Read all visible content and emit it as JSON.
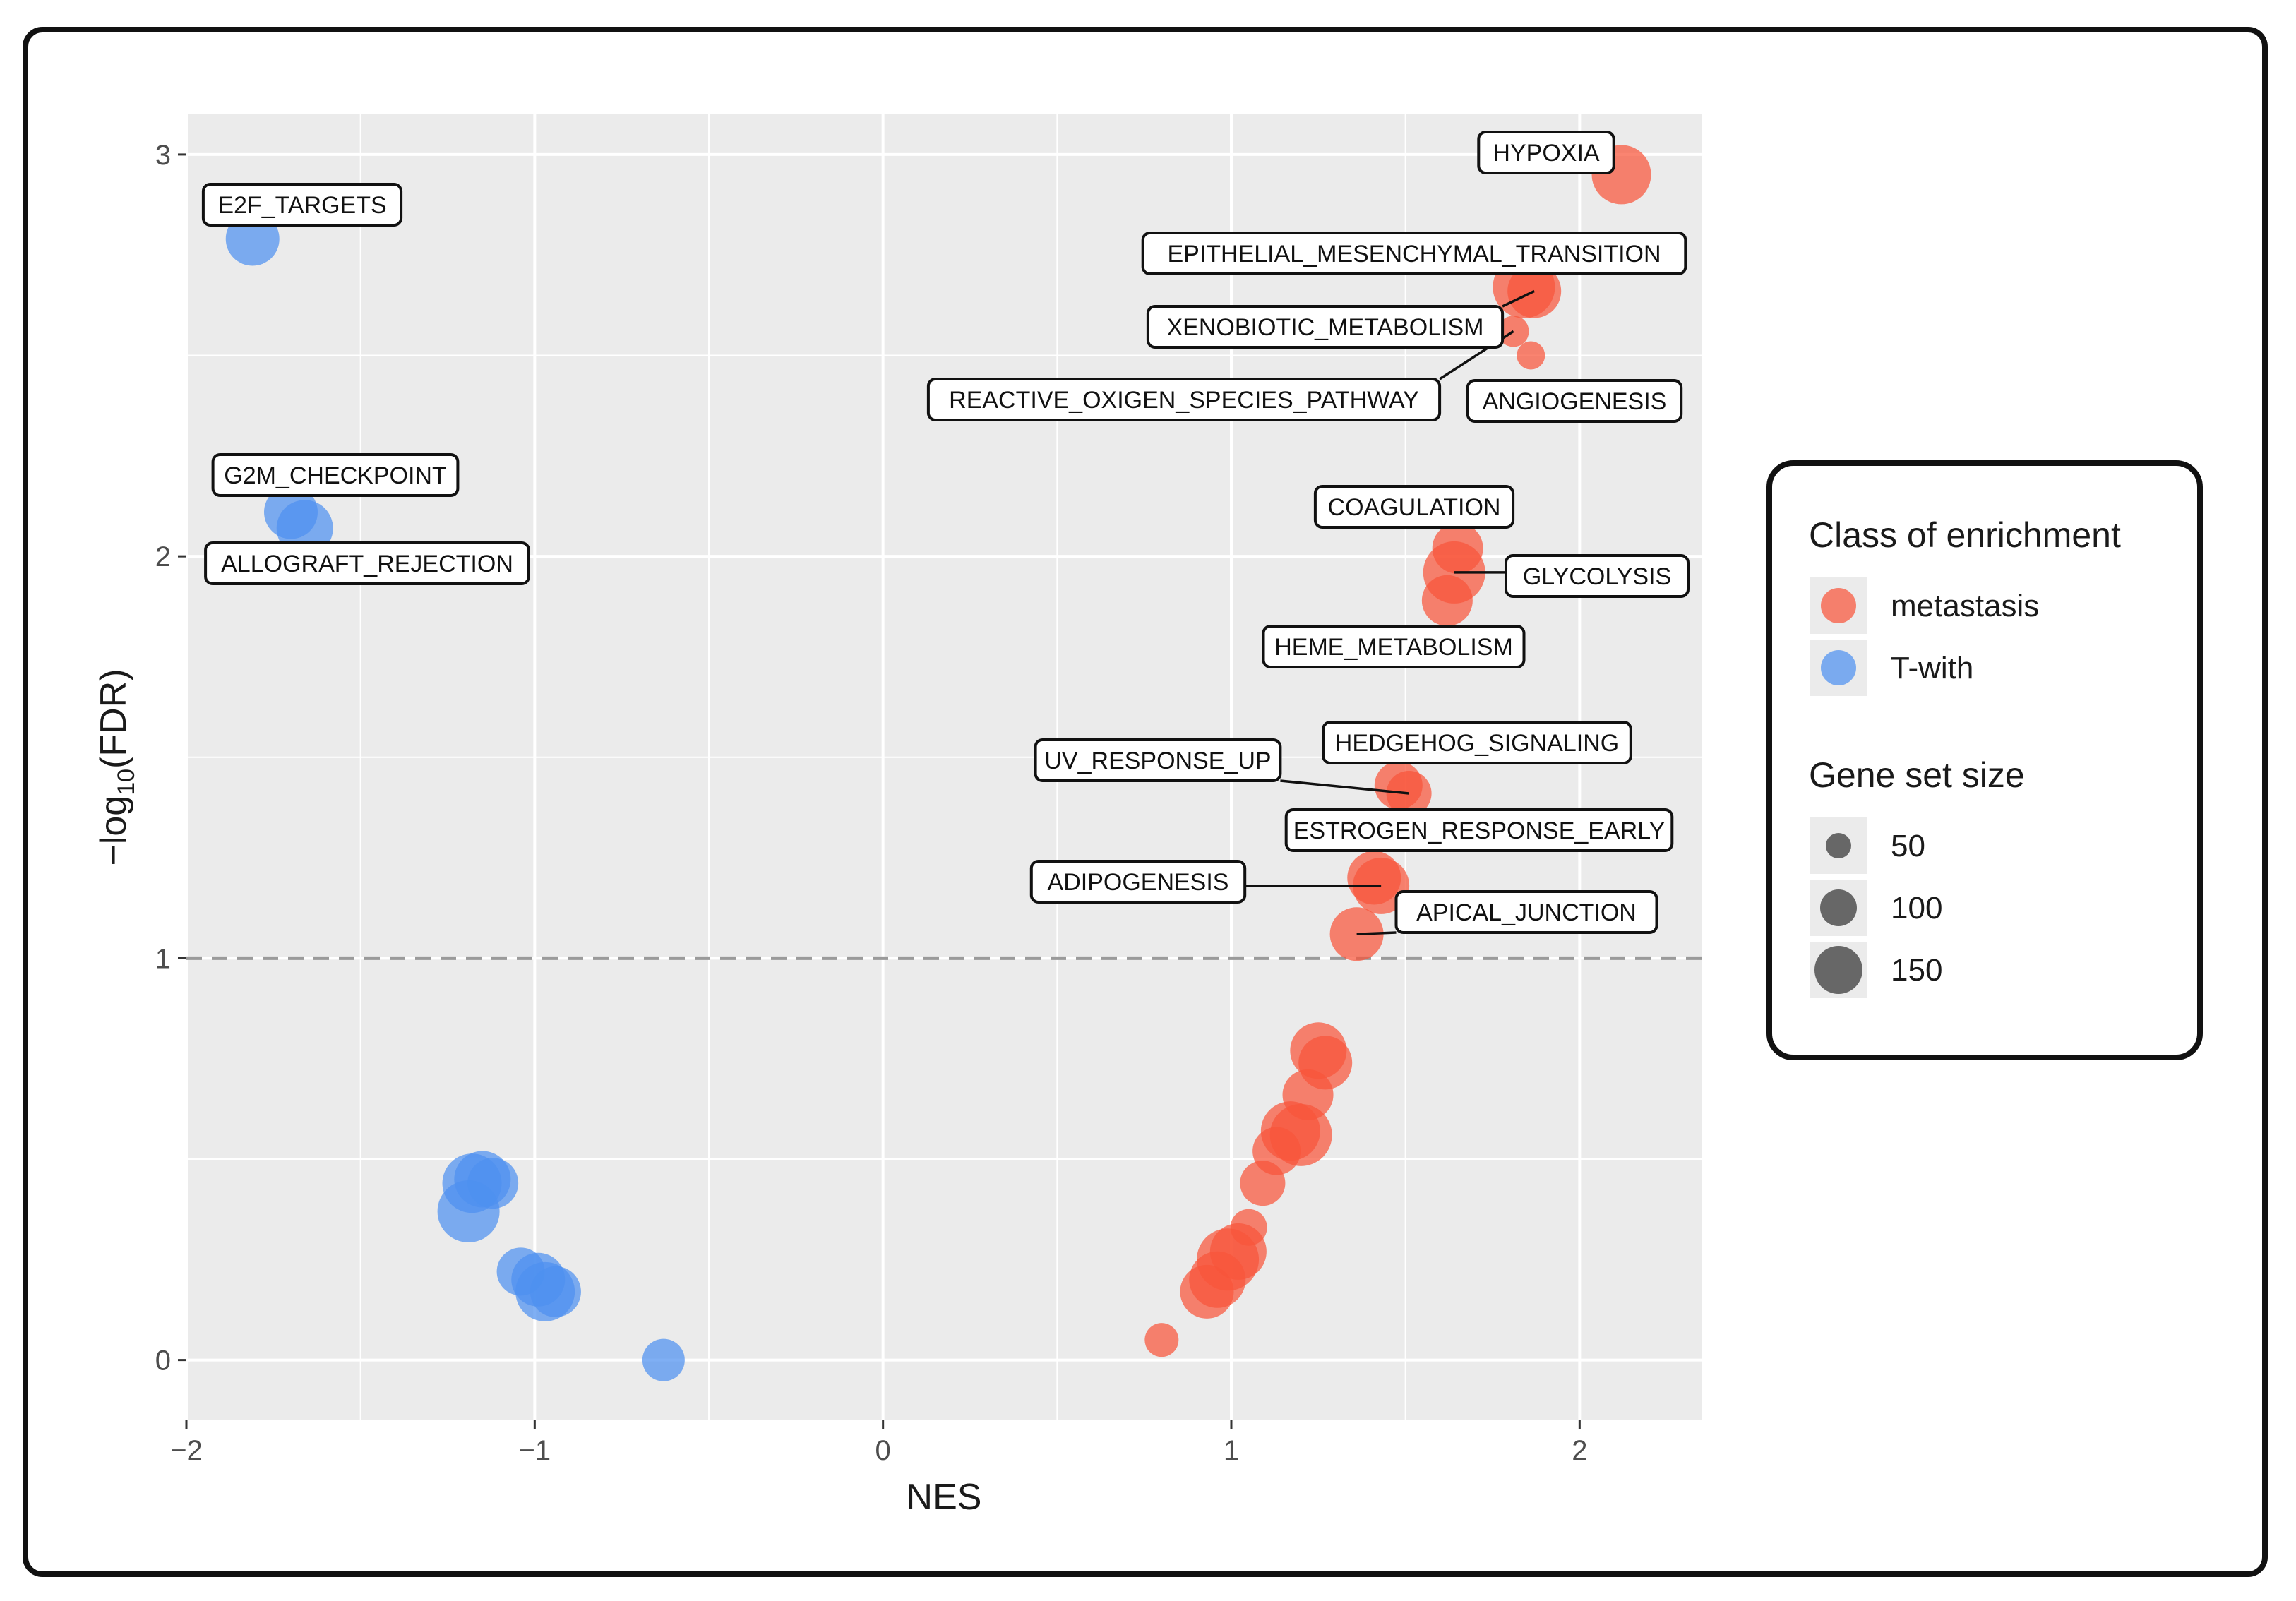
{
  "chart_data": {
    "type": "scatter",
    "xlabel": "NES",
    "ylabel_main": "−log",
    "ylabel_sub": "10",
    "ylabel_tail": "(FDR)",
    "xlim": [
      -2.0,
      2.35
    ],
    "ylim": [
      -0.15,
      3.1
    ],
    "x_ticks": [
      -2,
      -1,
      0,
      1,
      2
    ],
    "x_tick_labels": [
      "−2",
      "−1",
      "0",
      "1",
      "2"
    ],
    "y_ticks": [
      0,
      1,
      2,
      3
    ],
    "y_tick_labels": [
      "0",
      "1",
      "2",
      "3"
    ],
    "threshold_y": 1,
    "grid": true,
    "legend": {
      "color_title": "Class of enrichment",
      "color_items": [
        {
          "label": "metastasis",
          "color": "#F8543A"
        },
        {
          "label": "T-with",
          "color": "#4D90F0"
        }
      ],
      "size_title": "Gene set size",
      "size_items": [
        {
          "label": "50",
          "size": 50
        },
        {
          "label": "100",
          "size": 100
        },
        {
          "label": "150",
          "size": 150
        }
      ]
    },
    "series": [
      {
        "name": "T-with",
        "color": "#4D90F0",
        "points": [
          {
            "x": -1.81,
            "y": 2.79,
            "size": 120
          },
          {
            "x": -1.7,
            "y": 2.11,
            "size": 120
          },
          {
            "x": -1.66,
            "y": 2.07,
            "size": 130
          },
          {
            "x": -1.18,
            "y": 0.44,
            "size": 140
          },
          {
            "x": -1.15,
            "y": 0.45,
            "size": 130
          },
          {
            "x": -1.12,
            "y": 0.44,
            "size": 110
          },
          {
            "x": -1.19,
            "y": 0.37,
            "size": 150
          },
          {
            "x": -1.04,
            "y": 0.22,
            "size": 100
          },
          {
            "x": -0.99,
            "y": 0.2,
            "size": 120
          },
          {
            "x": -0.97,
            "y": 0.17,
            "size": 140
          },
          {
            "x": -0.94,
            "y": 0.17,
            "size": 110
          },
          {
            "x": -0.63,
            "y": 0.0,
            "size": 80
          }
        ]
      },
      {
        "name": "metastasis",
        "color": "#F8543A",
        "points": [
          {
            "x": 2.12,
            "y": 2.95,
            "size": 140
          },
          {
            "x": 1.84,
            "y": 2.67,
            "size": 150
          },
          {
            "x": 1.87,
            "y": 2.66,
            "size": 120
          },
          {
            "x": 1.81,
            "y": 2.56,
            "size": 40
          },
          {
            "x": 1.86,
            "y": 2.5,
            "size": 30
          },
          {
            "x": 1.65,
            "y": 2.02,
            "size": 110
          },
          {
            "x": 1.64,
            "y": 1.96,
            "size": 150
          },
          {
            "x": 1.62,
            "y": 1.89,
            "size": 110
          },
          {
            "x": 1.48,
            "y": 1.43,
            "size": 100
          },
          {
            "x": 1.51,
            "y": 1.41,
            "size": 90
          },
          {
            "x": 1.41,
            "y": 1.2,
            "size": 120
          },
          {
            "x": 1.43,
            "y": 1.18,
            "size": 130
          },
          {
            "x": 1.36,
            "y": 1.06,
            "size": 120
          },
          {
            "x": 1.25,
            "y": 0.77,
            "size": 130
          },
          {
            "x": 1.27,
            "y": 0.74,
            "size": 120
          },
          {
            "x": 1.22,
            "y": 0.66,
            "size": 110
          },
          {
            "x": 1.17,
            "y": 0.57,
            "size": 140
          },
          {
            "x": 1.2,
            "y": 0.56,
            "size": 150
          },
          {
            "x": 1.13,
            "y": 0.52,
            "size": 100
          },
          {
            "x": 1.09,
            "y": 0.44,
            "size": 90
          },
          {
            "x": 1.05,
            "y": 0.33,
            "size": 60
          },
          {
            "x": 1.02,
            "y": 0.27,
            "size": 130
          },
          {
            "x": 0.99,
            "y": 0.25,
            "size": 150
          },
          {
            "x": 0.96,
            "y": 0.2,
            "size": 130
          },
          {
            "x": 0.93,
            "y": 0.17,
            "size": 120
          },
          {
            "x": 0.8,
            "y": 0.05,
            "size": 50
          }
        ]
      }
    ],
    "labels": [
      {
        "text": "E2F_TARGETS",
        "x": -1.81,
        "y": 2.79
      },
      {
        "text": "G2M_CHECKPOINT",
        "x": -1.7,
        "y": 2.11
      },
      {
        "text": "ALLOGRAFT_REJECTION",
        "x": -1.66,
        "y": 2.07
      },
      {
        "text": "HYPOXIA",
        "x": 2.12,
        "y": 2.95
      },
      {
        "text": "EPITHELIAL_MESENCHYMAL_TRANSITION",
        "x": 1.84,
        "y": 2.67
      },
      {
        "text": "XENOBIOTIC_METABOLISM",
        "x": 1.87,
        "y": 2.66
      },
      {
        "text": "REACTIVE_OXIGEN_SPECIES_PATHWAY",
        "x": 1.81,
        "y": 2.56
      },
      {
        "text": "ANGIOGENESIS",
        "x": 1.86,
        "y": 2.5
      },
      {
        "text": "COAGULATION",
        "x": 1.65,
        "y": 2.02
      },
      {
        "text": "GLYCOLYSIS",
        "x": 1.64,
        "y": 1.96
      },
      {
        "text": "HEME_METABOLISM",
        "x": 1.62,
        "y": 1.89
      },
      {
        "text": "HEDGEHOG_SIGNALING",
        "x": 1.48,
        "y": 1.43
      },
      {
        "text": "UV_RESPONSE_UP",
        "x": 1.51,
        "y": 1.41
      },
      {
        "text": "ESTROGEN_RESPONSE_EARLY",
        "x": 1.41,
        "y": 1.2
      },
      {
        "text": "ADIPOGENESIS",
        "x": 1.43,
        "y": 1.18
      },
      {
        "text": "APICAL_JUNCTION",
        "x": 1.36,
        "y": 1.06
      }
    ]
  }
}
